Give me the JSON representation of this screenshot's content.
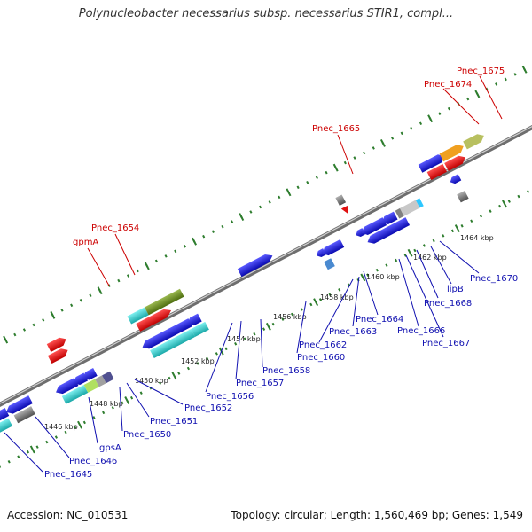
{
  "title": "Polynucleobacter necessarius subsp. necessarius STIR1, compl...",
  "footer": {
    "accession": "Accession: NC_010531",
    "summary": "Topology: circular; Length: 1,560,469 bp; Genes: 1,549"
  },
  "ticks": [
    "1446 kbp",
    "1448 kbp",
    "1450 kbp",
    "1452 kbp",
    "1454 kbp",
    "1456 kbp",
    "1458 kbp",
    "1460 kbp",
    "1462 kbp",
    "1464 kbp"
  ],
  "labels_above": [
    "gpmA",
    "Pnec_1654",
    "Pnec_1665",
    "Pnec_1674",
    "Pnec_1675"
  ],
  "labels_below": [
    "Pnec_1645",
    "Pnec_1646",
    "gpsA",
    "Pnec_1650",
    "Pnec_1651",
    "Pnec_1652",
    "Pnec_1656",
    "Pnec_1657",
    "Pnec_1658",
    "Pnec_1660",
    "Pnec_1662",
    "Pnec_1663",
    "Pnec_1664",
    "Pnec_1666",
    "Pnec_1667",
    "Pnec_1668",
    "lipB",
    "Pnec_1670"
  ],
  "colors": {
    "backbone": "#8c8c8c",
    "gene_blue": "#1a1ad6",
    "gene_cyan": "#2ec7c7",
    "gene_red": "#e01010",
    "gene_green": "#6b8e23",
    "gene_orange": "#f0a020",
    "gene_gray": "#7a7a7a",
    "dots_green": "#2e7d2e",
    "label_blue": "#1010b0",
    "label_red": "#cc0000"
  }
}
